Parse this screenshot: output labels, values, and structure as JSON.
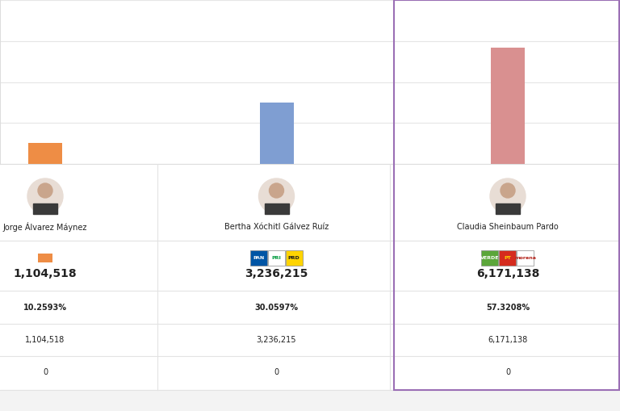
{
  "chart_data": {
    "type": "bar",
    "categories": [
      "Jorge Álvarez Máynez",
      "Bertha Xóchitl Gálvez Ruíz",
      "Claudia Sheinbaum Pardo"
    ],
    "values": [
      1104518,
      3236215,
      6171138
    ],
    "value_labels": [
      "1,104,518",
      "3,236,215",
      "6,171,138"
    ],
    "data_labels": true,
    "colors": [
      "#ee8d45",
      "#7f9ed2",
      "#d99090"
    ],
    "ylim": [
      0,
      8700000
    ],
    "yticks": [
      0,
      2175000,
      4350000,
      6525000,
      8700000
    ],
    "grid": true,
    "tick_labels": false
  },
  "parties": [
    [],
    [
      "PAN",
      "PRI",
      "PRD"
    ],
    [
      "VERDE",
      "PT",
      "morena"
    ]
  ],
  "table": {
    "rows": [
      [
        "10.2593%",
        "30.0597%",
        "57.3208%"
      ],
      [
        "1,104,518",
        "3,236,215",
        "6,171,138"
      ],
      [
        "0",
        "0",
        "0"
      ]
    ]
  }
}
